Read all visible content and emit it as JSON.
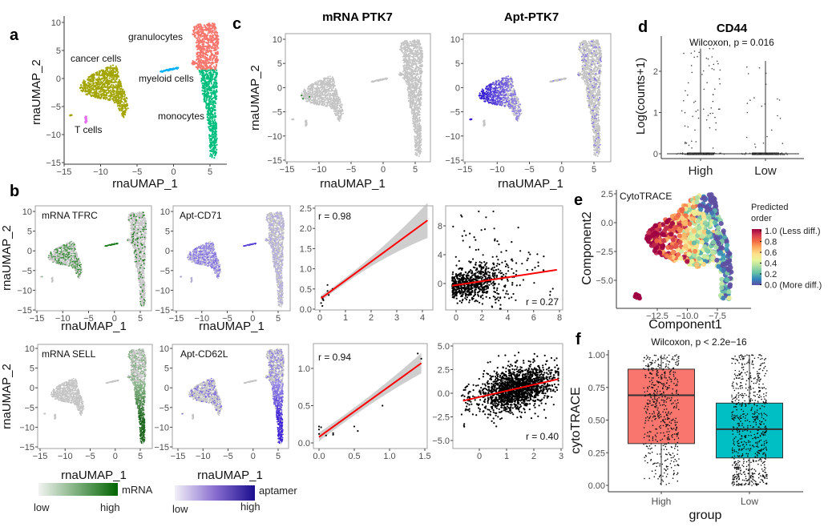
{
  "panel_labels": {
    "a": "a",
    "b": "b",
    "c": "c",
    "d": "d",
    "e": "e",
    "f": "f"
  },
  "legends": {
    "mrna": {
      "label": "mRNA",
      "low": "low",
      "high": "high",
      "colors": [
        "#F2F4F2",
        "#006400"
      ]
    },
    "aptamer": {
      "label": "aptamer",
      "low": "low",
      "high": "high",
      "colors": [
        "#F2F0F8",
        "#1A0F8F"
      ]
    }
  },
  "chart_data": [
    {
      "panel": "a",
      "type": "scatter",
      "xlabel": "rnaUMAP_1",
      "ylabel": "rnaUMAP_2",
      "xticks": [
        "−15",
        "−10",
        "−5",
        "0",
        "5"
      ],
      "yticks": [
        "10",
        "5",
        "0",
        "−5",
        "−10",
        "−15"
      ],
      "clusters": [
        {
          "name": "granulocytes",
          "color": "#F8766D"
        },
        {
          "name": "cancer cells",
          "color": "#A3A500"
        },
        {
          "name": "myeloid cells",
          "color": "#00B0F6"
        },
        {
          "name": "monocytes",
          "color": "#00BF7D"
        },
        {
          "name": "T cells",
          "color": "#E76BF3"
        }
      ]
    },
    {
      "panel": "b",
      "type": "scatter",
      "title": "mRNA TFRC",
      "xlabel": "rnaUMAP_1",
      "ylabel": "rnaUMAP_2",
      "xticks": [
        "−15",
        "−10",
        "−5",
        "0",
        "5"
      ],
      "yticks": [
        "10",
        "5",
        "0",
        "−5",
        "−10",
        "−15"
      ],
      "color_scale": "mRNA"
    },
    {
      "panel": "b",
      "type": "scatter",
      "title": "Apt-CD71",
      "xlabel": "rnaUMAP_1",
      "xticks": [
        "−15",
        "−10",
        "−5",
        "0",
        "5"
      ],
      "yticks": [
        "10",
        "5",
        "0",
        "−5",
        "−10",
        "−15"
      ],
      "color_scale": "aptamer"
    },
    {
      "panel": "b",
      "type": "scatter",
      "r_label": "r = 0.98",
      "xticks": [
        "0",
        "1",
        "2",
        "3",
        "4"
      ],
      "yticks": [
        "0.0",
        "0.5",
        "1.0",
        "1.5",
        "2.0",
        "2.5"
      ],
      "points": {
        "x": [
          0.05,
          0.1,
          0.08,
          0.12,
          0.3,
          0.3,
          0.35,
          0.5,
          0.1,
          0.14
        ],
        "y": [
          0.15,
          0.08,
          0.3,
          0.25,
          0.6,
          0.45,
          0.35,
          0.5,
          0.28,
          0.22
        ]
      },
      "fit_line": {
        "x": [
          0.05,
          4.2
        ],
        "y": [
          0.27,
          2.2
        ]
      },
      "fit_color": "#FF0000"
    },
    {
      "panel": "b",
      "type": "scatter",
      "r_label": "r = 0.27",
      "xticks": [
        "0",
        "2",
        "4",
        "6",
        "8"
      ],
      "yticks": [
        "0",
        "4",
        "8"
      ],
      "fit_line": {
        "x": [
          -0.3,
          7.8
        ],
        "y": [
          -0.3,
          1.9
        ]
      },
      "fit_color": "#FF0000"
    },
    {
      "panel": "b",
      "type": "scatter",
      "title": "mRNA SELL",
      "xlabel": "rnaUMAP_1",
      "ylabel": "rnaUMAP_2",
      "xticks": [
        "−15",
        "−10",
        "−5",
        "0",
        "5"
      ],
      "yticks": [
        "10",
        "5",
        "0",
        "−5",
        "−10",
        "−15"
      ],
      "color_scale": "mRNA"
    },
    {
      "panel": "b",
      "type": "scatter",
      "title": "Apt-CD62L",
      "xlabel": "rnaUMAP_1",
      "xticks": [
        "−15",
        "−10",
        "−5",
        "0",
        "5"
      ],
      "yticks": [
        "10",
        "5",
        "0",
        "−5",
        "−10",
        "−15"
      ],
      "color_scale": "aptamer"
    },
    {
      "panel": "b",
      "type": "scatter",
      "r_label": "r = 0.94",
      "xticks": [
        "0.0",
        "0.5",
        "1.0",
        "1.5"
      ],
      "yticks": [
        "0.0",
        "0.5",
        "1.0"
      ],
      "points": {
        "x": [
          0,
          0.03,
          0,
          0,
          0.1,
          0.2,
          0.2,
          0.5,
          0.55,
          0.9,
          1.4,
          1.45
        ],
        "y": [
          0.22,
          0.21,
          0.12,
          0.18,
          0.1,
          0.13,
          0.11,
          0.22,
          0.16,
          0.5,
          1.2,
          1.13
        ]
      },
      "fit_line": {
        "x": [
          0,
          1.45
        ],
        "y": [
          0.08,
          1.07
        ]
      },
      "fit_color": "#FF0000"
    },
    {
      "panel": "b",
      "type": "scatter",
      "r_label": "r = 0.40",
      "xticks": [
        "0",
        "1",
        "2",
        "3"
      ],
      "yticks": [
        "−5.0",
        "−2.5",
        "0.0",
        "2.5",
        "5.0"
      ],
      "fit_line": {
        "x": [
          -0.6,
          2.9
        ],
        "y": [
          -0.8,
          1.5
        ]
      },
      "fit_color": "#FF0000"
    },
    {
      "panel": "c",
      "type": "scatter",
      "title": "mRNA PTK7",
      "xlabel": "rnaUMAP_1",
      "ylabel": "rnaUMAP_2",
      "xticks": [
        "−15",
        "−10",
        "−5",
        "0",
        "5"
      ],
      "yticks": [
        "10",
        "5",
        "0",
        "−5",
        "−10",
        "−15"
      ],
      "color_scale": "mRNA"
    },
    {
      "panel": "c",
      "type": "scatter",
      "title": "Apt-PTK7",
      "xlabel": "rnaUMAP_1",
      "xticks": [
        "−15",
        "−10",
        "−5",
        "0",
        "5"
      ],
      "yticks": [
        "10",
        "5",
        "0",
        "−5",
        "−10",
        "−15"
      ],
      "color_scale": "aptamer"
    },
    {
      "panel": "d",
      "type": "violin",
      "title": "CD44",
      "subtitle": "Wilcoxon, p = 0.016",
      "ylabel": "Log(counts+1)",
      "categories": [
        "High",
        "Low"
      ],
      "yticks": [
        "0",
        "1",
        "2"
      ],
      "max": [
        2.55,
        2.25
      ],
      "median": [
        0,
        0
      ]
    },
    {
      "panel": "e",
      "type": "scatter",
      "annotation": "CytoTRACE",
      "xlabel": "Component1",
      "ylabel": "Component2",
      "xticks": [
        "−12.5",
        "−10.0",
        "−7.5"
      ],
      "yticks": [
        "2.5",
        "0.0",
        "−2.5",
        "−5.0"
      ],
      "legend": {
        "title_lines": [
          "Predicted",
          "order"
        ],
        "labels": [
          "1.0 (Less diff.)",
          "0.8",
          "0.6",
          "0.4",
          "0.2",
          "0.0 (More diff.)"
        ],
        "colors": [
          "#5E4FA2",
          "#3288BD",
          "#66C2A5",
          "#ABDDA4",
          "#E6F598",
          "#FEE08B",
          "#FDAE61",
          "#F46D43",
          "#D53E4F",
          "#9E0142"
        ]
      }
    },
    {
      "panel": "f",
      "type": "box",
      "title": "Wilcoxon, p < 2.2e−16",
      "xlabel": "group",
      "ylabel": "cytoTRACE",
      "categories": [
        "High",
        "Low"
      ],
      "yticks": [
        "0.00",
        "0.25",
        "0.50",
        "0.75",
        "1.00"
      ],
      "boxes": [
        {
          "q1": 0.32,
          "median": 0.69,
          "q3": 0.89,
          "min": 0,
          "max": 1,
          "color": "#F8766D"
        },
        {
          "q1": 0.21,
          "median": 0.43,
          "q3": 0.63,
          "min": 0,
          "max": 1,
          "color": "#00BFC4"
        }
      ]
    }
  ]
}
